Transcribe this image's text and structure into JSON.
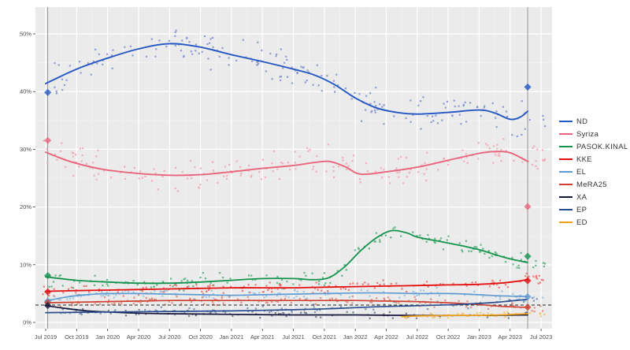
{
  "chart_data": {
    "type": "scatter",
    "title": "",
    "xlabel": "",
    "ylabel": "",
    "x_unit": "months since Jul 2019",
    "xlim": [
      -1,
      49.1
    ],
    "ylim": [
      -1.1,
      54.6
    ],
    "grid": true,
    "panel_bg": "#ebebeb",
    "grid_major_color": "#ffffff",
    "grid_minor_color": "#f3f3f3",
    "axis_text_color": "#4d4d4d",
    "x_ticks": [
      {
        "m": 0,
        "label": "Jul 2019"
      },
      {
        "m": 3,
        "label": "Oct 2019"
      },
      {
        "m": 6,
        "label": "Jan 2020"
      },
      {
        "m": 9,
        "label": "Apr 2020"
      },
      {
        "m": 12,
        "label": "Jul 2020"
      },
      {
        "m": 15,
        "label": "Oct 2020"
      },
      {
        "m": 18,
        "label": "Jan 2021"
      },
      {
        "m": 21,
        "label": "Apr 2021"
      },
      {
        "m": 24,
        "label": "Jul 2021"
      },
      {
        "m": 27,
        "label": "Oct 2021"
      },
      {
        "m": 30,
        "label": "Jan 2022"
      },
      {
        "m": 33,
        "label": "Apr 2022"
      },
      {
        "m": 36,
        "label": "Jul 2022"
      },
      {
        "m": 39,
        "label": "Oct 2022"
      },
      {
        "m": 42,
        "label": "Jan 2023"
      },
      {
        "m": 45,
        "label": "Apr 2023"
      },
      {
        "m": 48,
        "label": "Jul 2023"
      }
    ],
    "y_ticks": [
      {
        "v": 0,
        "label": "0%"
      },
      {
        "v": 10,
        "label": "10%"
      },
      {
        "v": 20,
        "label": "20%"
      },
      {
        "v": 30,
        "label": "30%"
      },
      {
        "v": 40,
        "label": "40%"
      },
      {
        "v": 50,
        "label": "50%"
      }
    ],
    "threshold_line": {
      "value": 3,
      "color": "#222222",
      "dash": "4,3"
    },
    "election_lines": [
      {
        "name": "election-jul-2019",
        "x": 0.2,
        "color": "#8c8c8c"
      },
      {
        "name": "election-may-2023",
        "x": 46.7,
        "color": "#8c8c8c"
      }
    ],
    "legend_position": "right",
    "series": [
      {
        "name": "ND",
        "color": "#2458c4",
        "scatter_color": "#7e8fd0",
        "line_width": 1.9,
        "points": [
          [
            0,
            41.4
          ],
          [
            3,
            43.9
          ],
          [
            6,
            45.8
          ],
          [
            9,
            47.4
          ],
          [
            12,
            48.3
          ],
          [
            15,
            47.7
          ],
          [
            18,
            46.4
          ],
          [
            21,
            45.2
          ],
          [
            24,
            43.9
          ],
          [
            26,
            42.9
          ],
          [
            28,
            41.2
          ],
          [
            30,
            38.9
          ],
          [
            32,
            37.2
          ],
          [
            34,
            36.4
          ],
          [
            36,
            36.1
          ],
          [
            39,
            36.4
          ],
          [
            42,
            36.8
          ],
          [
            43.5,
            36.3
          ],
          [
            45,
            35.2
          ],
          [
            46,
            35.6
          ],
          [
            46.7,
            36.6
          ]
        ],
        "scatter": {
          "n": 200,
          "amp": 2.4,
          "x0": -0.3,
          "x1": 48.4
        }
      },
      {
        "name": "Syriza",
        "color": "#e9657e",
        "scatter_color": "#f2a3b3",
        "line_width": 1.9,
        "points": [
          [
            0,
            29.5
          ],
          [
            2,
            28.1
          ],
          [
            4,
            27.1
          ],
          [
            6,
            26.4
          ],
          [
            9,
            25.8
          ],
          [
            12,
            25.5
          ],
          [
            15,
            25.6
          ],
          [
            18,
            26.1
          ],
          [
            21,
            26.7
          ],
          [
            24,
            27.2
          ],
          [
            26,
            27.7
          ],
          [
            27.5,
            27.9
          ],
          [
            29,
            27.0
          ],
          [
            30.5,
            25.7
          ],
          [
            33,
            26.1
          ],
          [
            36,
            26.9
          ],
          [
            39,
            28.1
          ],
          [
            42,
            29.3
          ],
          [
            43.5,
            29.6
          ],
          [
            45,
            29.4
          ],
          [
            46.7,
            27.9
          ]
        ],
        "scatter": {
          "n": 200,
          "amp": 2.0,
          "x0": -0.3,
          "x1": 48.4
        }
      },
      {
        "name": "PASOK.KINAL",
        "color": "#14934e",
        "scatter_color": "#4fae77",
        "line_width": 1.8,
        "points": [
          [
            0,
            7.9
          ],
          [
            3,
            7.3
          ],
          [
            6,
            7.0
          ],
          [
            9,
            6.8
          ],
          [
            12,
            6.8
          ],
          [
            15,
            7.0
          ],
          [
            18,
            7.3
          ],
          [
            21,
            7.6
          ],
          [
            24,
            7.6
          ],
          [
            26,
            7.4
          ],
          [
            27.5,
            7.8
          ],
          [
            29,
            9.7
          ],
          [
            30.5,
            12.4
          ],
          [
            32,
            14.6
          ],
          [
            33.5,
            15.9
          ],
          [
            35,
            15.5
          ],
          [
            36,
            14.8
          ],
          [
            38,
            14.1
          ],
          [
            40,
            13.4
          ],
          [
            42,
            12.6
          ],
          [
            44,
            11.5
          ],
          [
            45.5,
            10.8
          ],
          [
            46.7,
            10.4
          ]
        ],
        "scatter": {
          "n": 160,
          "amp": 1.1,
          "x0": -0.3,
          "x1": 48.4
        }
      },
      {
        "name": "KKE",
        "color": "#e41111",
        "scatter_color": "#e96a66",
        "line_width": 1.8,
        "points": [
          [
            0,
            5.4
          ],
          [
            3,
            5.5
          ],
          [
            6,
            5.6
          ],
          [
            9,
            5.7
          ],
          [
            12,
            5.8
          ],
          [
            15,
            5.9
          ],
          [
            18,
            6.0
          ],
          [
            21,
            6.0
          ],
          [
            24,
            6.0
          ],
          [
            27,
            6.1
          ],
          [
            30,
            6.2
          ],
          [
            33,
            6.3
          ],
          [
            36,
            6.4
          ],
          [
            39,
            6.5
          ],
          [
            42,
            6.6
          ],
          [
            44,
            6.8
          ],
          [
            46,
            7.2
          ],
          [
            46.7,
            7.5
          ]
        ],
        "scatter": {
          "n": 150,
          "amp": 0.75,
          "x0": -0.3,
          "x1": 48.4
        }
      },
      {
        "name": "EL",
        "color": "#5e9bd3",
        "scatter_color": "#97bede",
        "line_width": 1.7,
        "points": [
          [
            0,
            3.7
          ],
          [
            2,
            4.4
          ],
          [
            4,
            4.8
          ],
          [
            6,
            5.0
          ],
          [
            9,
            5.0
          ],
          [
            12,
            4.9
          ],
          [
            15,
            4.8
          ],
          [
            18,
            4.7
          ],
          [
            21,
            4.8
          ],
          [
            24,
            4.9
          ],
          [
            27,
            5.0
          ],
          [
            30,
            5.1
          ],
          [
            33,
            5.1
          ],
          [
            36,
            5.0
          ],
          [
            39,
            5.0
          ],
          [
            42,
            4.8
          ],
          [
            44,
            4.6
          ],
          [
            46.7,
            4.5
          ]
        ],
        "scatter": {
          "n": 130,
          "amp": 0.7,
          "x0": -0.3,
          "x1": 48.4
        }
      },
      {
        "name": "MeRA25",
        "color": "#cf4232",
        "scatter_color": "#dd8173",
        "line_width": 1.7,
        "points": [
          [
            0,
            3.4
          ],
          [
            3,
            3.5
          ],
          [
            6,
            3.6
          ],
          [
            9,
            3.7
          ],
          [
            12,
            3.8
          ],
          [
            15,
            3.8
          ],
          [
            18,
            3.8
          ],
          [
            21,
            3.8
          ],
          [
            24,
            3.8
          ],
          [
            27,
            3.8
          ],
          [
            30,
            3.8
          ],
          [
            33,
            3.7
          ],
          [
            36,
            3.6
          ],
          [
            39,
            3.4
          ],
          [
            42,
            3.1
          ],
          [
            44,
            2.8
          ],
          [
            46.7,
            2.6
          ]
        ],
        "scatter": {
          "n": 130,
          "amp": 0.65,
          "x0": -0.3,
          "x1": 48.4
        }
      },
      {
        "name": "XA",
        "color": "#15173c",
        "scatter_color": "#6b6f85",
        "line_width": 1.7,
        "points": [
          [
            0,
            2.9
          ],
          [
            2,
            2.4
          ],
          [
            4,
            2.0
          ],
          [
            6,
            1.8
          ],
          [
            9,
            1.6
          ],
          [
            12,
            1.5
          ],
          [
            18,
            1.4
          ],
          [
            24,
            1.3
          ],
          [
            30,
            1.3
          ],
          [
            36,
            1.2
          ],
          [
            42,
            1.2
          ],
          [
            46.7,
            1.3
          ]
        ],
        "scatter": {
          "n": 70,
          "amp": 0.5,
          "x0": -0.3,
          "x1": 46.7
        }
      },
      {
        "name": "EP",
        "color": "#2a4d8f",
        "scatter_color": "#7187a8",
        "line_width": 1.7,
        "points": [
          [
            0,
            1.7
          ],
          [
            6,
            1.8
          ],
          [
            12,
            1.9
          ],
          [
            18,
            2.0
          ],
          [
            24,
            2.2
          ],
          [
            28,
            2.4
          ],
          [
            32,
            2.7
          ],
          [
            36,
            2.9
          ],
          [
            40,
            3.1
          ],
          [
            43,
            3.4
          ],
          [
            45,
            3.7
          ],
          [
            46.7,
            4.0
          ]
        ],
        "scatter": {
          "n": 90,
          "amp": 0.55,
          "x0": -0.3,
          "x1": 48.4
        }
      },
      {
        "name": "ED",
        "color": "#efa31d",
        "scatter_color": "#f3c064",
        "line_width": 1.7,
        "points": [
          [
            34.5,
            1.0
          ],
          [
            36,
            1.1
          ],
          [
            39,
            1.2
          ],
          [
            42,
            1.2
          ],
          [
            44,
            1.3
          ],
          [
            46.7,
            1.5
          ]
        ],
        "scatter": {
          "n": 45,
          "amp": 0.4,
          "x0": 34.5,
          "x1": 48.4
        }
      }
    ],
    "election_results": [
      {
        "election": "Jul 2019",
        "x": 0.2,
        "results": [
          {
            "party": "ND",
            "value": 39.85
          },
          {
            "party": "Syriza",
            "value": 31.53
          },
          {
            "party": "PASOK.KINAL",
            "value": 8.1
          },
          {
            "party": "KKE",
            "value": 5.3
          },
          {
            "party": "EL",
            "value": 3.7
          },
          {
            "party": "MeRA25",
            "value": 3.44
          },
          {
            "party": "XA",
            "value": 2.93
          }
        ]
      },
      {
        "election": "May 2023",
        "x": 46.7,
        "results": [
          {
            "party": "ND",
            "value": 40.79
          },
          {
            "party": "Syriza",
            "value": 20.07
          },
          {
            "party": "PASOK.KINAL",
            "value": 11.46
          },
          {
            "party": "KKE",
            "value": 7.23
          },
          {
            "party": "EL",
            "value": 4.45
          },
          {
            "party": "MeRA25",
            "value": 2.63
          }
        ]
      }
    ]
  }
}
